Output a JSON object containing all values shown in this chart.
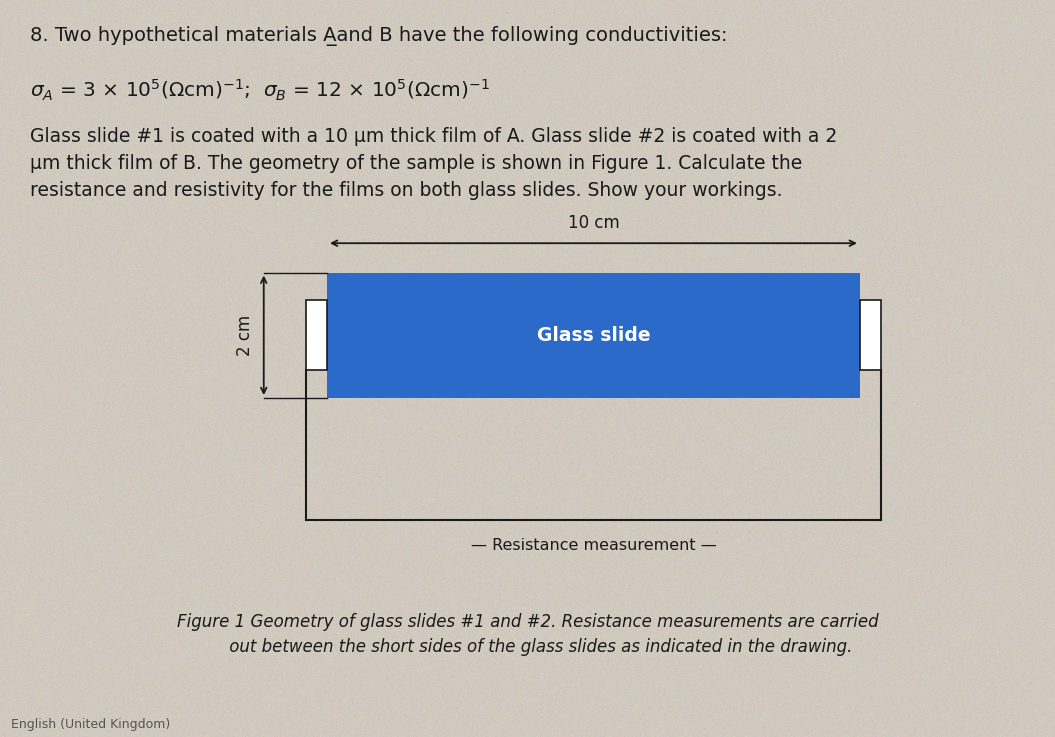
{
  "bg_color": "#cfc9be",
  "text_color": "#1a1a1a",
  "slide_color": "#2b6ac8",
  "glass_slide_label": "Glass slide",
  "dim_10cm": "10 cm",
  "dim_2cm": "2 cm",
  "resistance_label": "Resistance measurement",
  "footer": "English (United Kingdom)",
  "title": "8. Two hypothetical materials A̲and B have the following conductivities:",
  "body": "Glass slide #1 is coated with a 10 μm thick film of A. Glass slide #2 is coated with a 2\nμm thick film of B. The geometry of the sample is shown in Figure 1. Calculate the\nresistance and resistivity for the films on both glass slides. Show your workings.",
  "caption_line1": "Figure 1 Geometry of glass slides #1 and #2. Resistance measurements are carried",
  "caption_line2": "out between the short sides of the glass slides as indicated in the drawing."
}
